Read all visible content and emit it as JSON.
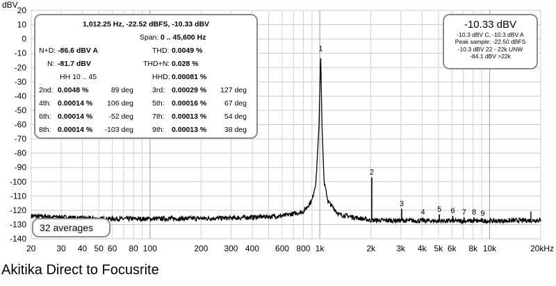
{
  "chart_data": {
    "type": "line",
    "ylabel": "dBV",
    "xlabel_unit": "kHz",
    "x_scale": "log",
    "xlim": [
      20,
      20000
    ],
    "ylim": [
      -140,
      20
    ],
    "y_ticks": [
      20,
      10,
      0,
      -10,
      -20,
      -30,
      -40,
      -50,
      -60,
      -70,
      -80,
      -90,
      -100,
      -110,
      -120,
      -130,
      -140
    ],
    "x_ticks": [
      {
        "x": 20,
        "label": "20"
      },
      {
        "x": 30,
        "label": "30"
      },
      {
        "x": 40,
        "label": "40"
      },
      {
        "x": 50,
        "label": "50"
      },
      {
        "x": 60,
        "label": "60"
      },
      {
        "x": 80,
        "label": "80"
      },
      {
        "x": 100,
        "label": "100"
      },
      {
        "x": 200,
        "label": "200"
      },
      {
        "x": 300,
        "label": "300"
      },
      {
        "x": 400,
        "label": "400"
      },
      {
        "x": 600,
        "label": "600"
      },
      {
        "x": 800,
        "label": "800"
      },
      {
        "x": 1000,
        "label": "1k"
      },
      {
        "x": 2000,
        "label": "2k"
      },
      {
        "x": 3000,
        "label": "3k"
      },
      {
        "x": 4000,
        "label": "4k"
      },
      {
        "x": 5000,
        "label": "5k"
      },
      {
        "x": 6000,
        "label": "6k"
      },
      {
        "x": 8000,
        "label": "8k"
      },
      {
        "x": 10000,
        "label": "10k"
      },
      {
        "x": 20000,
        "label": "20kHz"
      }
    ],
    "noise_floor": [
      {
        "x": 20,
        "y": -124
      },
      {
        "x": 50,
        "y": -126
      },
      {
        "x": 100,
        "y": -126
      },
      {
        "x": 300,
        "y": -125.5
      },
      {
        "x": 600,
        "y": -124
      },
      {
        "x": 800,
        "y": -121
      },
      {
        "x": 900,
        "y": -113
      },
      {
        "x": 950,
        "y": -100
      },
      {
        "x": 990,
        "y": -60
      },
      {
        "x": 1012,
        "y": -10.3
      },
      {
        "x": 1030,
        "y": -60
      },
      {
        "x": 1060,
        "y": -100
      },
      {
        "x": 1120,
        "y": -114
      },
      {
        "x": 1300,
        "y": -123
      },
      {
        "x": 2000,
        "y": -127
      },
      {
        "x": 5000,
        "y": -127.5
      },
      {
        "x": 10000,
        "y": -127.5
      },
      {
        "x": 20000,
        "y": -127
      }
    ],
    "harmonics": [
      {
        "label": "1",
        "x": 1012,
        "y": -10.3
      },
      {
        "label": "2",
        "x": 2024,
        "y": -97
      },
      {
        "label": "3",
        "x": 3037,
        "y": -119
      },
      {
        "label": "4",
        "x": 4049,
        "y": -125
      },
      {
        "label": "5",
        "x": 5061,
        "y": -123
      },
      {
        "label": "6",
        "x": 6073,
        "y": -124
      },
      {
        "label": "7",
        "x": 7085,
        "y": -125
      },
      {
        "label": "8",
        "x": 8098,
        "y": -125
      },
      {
        "label": "9",
        "x": 9110,
        "y": -126
      }
    ],
    "spur": {
      "x": 17500,
      "y": -121
    }
  },
  "stats_panel": {
    "headline": "1,012.25 Hz, -22.52 dBFS, -10.33 dBV",
    "span_label": "Span:",
    "span_value": "0 .. 45,600 Hz",
    "nd_label": "N+D:",
    "nd_value": "-86.6 dBV A",
    "thd_label": "THD:",
    "thd_value": "0.0049 %",
    "n_label": "N:",
    "n_value": "-81.7 dBV",
    "thdn_label": "THD+N:",
    "thdn_value": "0.028 %",
    "hh_label": "HH 10 .. 45",
    "hhd_label": "HHD:",
    "hhd_value": "0.00081 %",
    "rows": [
      {
        "l1": "2nd:",
        "v1": "0.0048 %",
        "p1": "89 deg",
        "l2": "3rd:",
        "v2": "0.00029 %",
        "p2": "127 deg"
      },
      {
        "l1": "4th:",
        "v1": "0.00014 %",
        "p1": "106 deg",
        "l2": "5th:",
        "v2": "0.00016 %",
        "p2": "67 deg"
      },
      {
        "l1": "6th:",
        "v1": "0.00014 %",
        "p1": "-52 deg",
        "l2": "7th:",
        "v2": "0.00013 %",
        "p2": "54 deg"
      },
      {
        "l1": "8th:",
        "v1": "0.00014 %",
        "p1": "-103 deg",
        "l2": "9th:",
        "v2": "0.00013 %",
        "p2": "38 deg"
      }
    ]
  },
  "level_panel": {
    "main": "-10.33 dBV",
    "line1": "-10.3 dBV C, -10.3 dBV A",
    "line2": "Peak sample: -22.50 dBFS",
    "line3": "-10.3 dBV 22 - 22k UNW",
    "line4": "-84.1 dBV >22k"
  },
  "averages_label": "32 averages",
  "caption": "Akitika Direct to Focusrite",
  "colors": {
    "trace": "#000000",
    "grid": "#c0c0c0",
    "panel_border": "#8c8c8c"
  }
}
